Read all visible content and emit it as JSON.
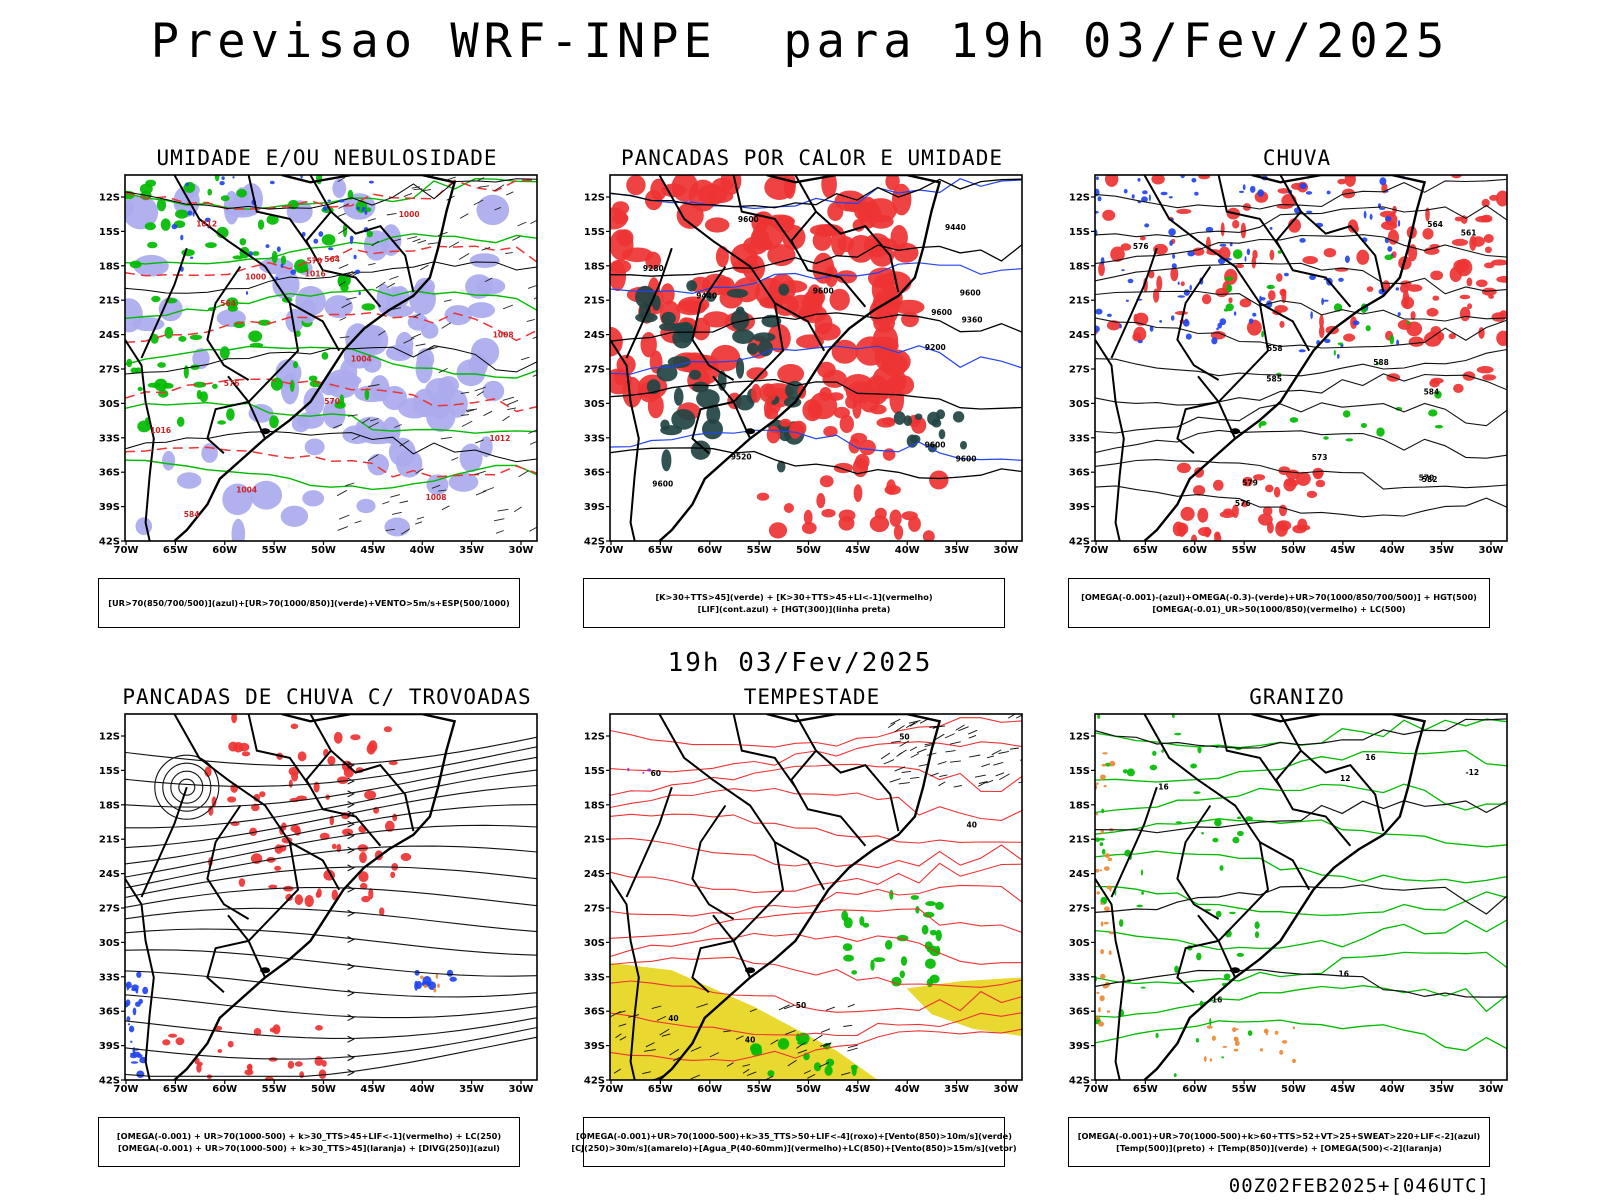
{
  "title": "Previsao WRF-INPE  para 19h 03/Fev/2025",
  "mid_title": "19h 03/Fev/2025",
  "footer": "00Z02FEB2025+[046UTC]",
  "axes": {
    "lat_labels": [
      "12S",
      "15S",
      "18S",
      "21S",
      "24S",
      "27S",
      "30S",
      "33S",
      "36S",
      "39S",
      "42S"
    ],
    "lon_labels": [
      "70W",
      "65W",
      "60W",
      "55W",
      "50W",
      "45W",
      "40W",
      "35W",
      "30W"
    ]
  },
  "colors": {
    "blue": "#2244ee",
    "green": "#00bb00",
    "red": "#ee3333",
    "lavender": "#aaaaee",
    "darkteal": "#224444",
    "yellow": "#e8d830",
    "orange": "#ee8833",
    "purple": "#9933cc"
  },
  "panels": [
    {
      "id": "umidade",
      "title": "UMIDADE E/OU NEBULOSIDADE",
      "legend": [
        "[UR>70(850/700/500)](azul)+[UR>70(1000/850)](verde)+VENTO>5m/s+ESP(500/1000)"
      ],
      "contour_labels": [
        "1008",
        "1012",
        "1012",
        "1008",
        "1004",
        "1000",
        "1000",
        "1004",
        "1016",
        "1016",
        "570",
        "570",
        "564",
        "564",
        "576",
        "584"
      ]
    },
    {
      "id": "pancadas-calor",
      "title": "PANCADAS POR CALOR E UMIDADE",
      "legend": [
        "[K>30+TTS>45](verde) + [K>30+TTS>45+LI<-1](vermelho)",
        "[LIF](cont.azul) + [HGT(300)](linha preta)"
      ],
      "contour_labels": [
        "9600",
        "9600",
        "9600",
        "9600",
        "9600",
        "9600",
        "9600",
        "9520",
        "9440",
        "9440",
        "9360",
        "9280",
        "9200"
      ]
    },
    {
      "id": "chuva",
      "title": "CHUVA",
      "legend": [
        "[OMEGA(-0.001)-(azul)+OMEGA(-0.3)-(verde)+UR>70(1000/850/700/500)] + HGT(500)",
        "[OMEGA(-0.01)_UR>50(1000/850)(vermelho) + LC(500)"
      ],
      "contour_labels": [
        "584",
        "588",
        "582",
        "576",
        "570",
        "564",
        "558",
        "561",
        "576",
        "579",
        "585",
        "573"
      ]
    },
    {
      "id": "trovoadas",
      "title": "PANCADAS DE CHUVA C/ TROVOADAS",
      "legend": [
        "[OMEGA(-0.001) + UR>70(1000-500) + k>30_TTS>45+LIF<-1](vermelho) + LC(250)",
        "[OMEGA(-0.001) + UR>70(1000-500) + k>30_TTS>45](laranja) + [DIVG(250)](azul)"
      ],
      "contour_labels": []
    },
    {
      "id": "tempestade",
      "title": "TEMPESTADE",
      "legend": [
        "[OMEGA(-0.001)+UR>70(1000-500)+k>35_TTS>50+LIF<-4](roxo)+[Vento(850)>10m/s](verde)",
        "[CJ(250)>30m/s](amarelo)+[Agua_P(40-60mm)](vermelho)+LC(850)+[Vento(850)>15m/s](vetor)"
      ],
      "contour_labels": [
        "40",
        "40",
        "50",
        "40",
        "50",
        "60"
      ]
    },
    {
      "id": "granizo",
      "title": "GRANIZO",
      "legend": [
        "[OMEGA(-0.001)+UR>70(1000-500)+k>60+TTS>52+VT>25+SWEAT>220+LIF<-2](azul)",
        "[Temp(500)](preto) + [Temp(850)](verde) + [OMEGA(500)<-2](laranja)"
      ],
      "contour_labels": [
        "-12",
        "16",
        "16",
        "16",
        "16",
        "12"
      ]
    }
  ]
}
